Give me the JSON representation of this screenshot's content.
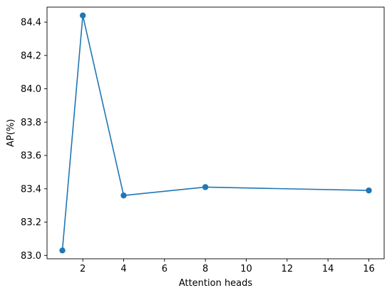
{
  "chart_data": {
    "type": "line",
    "title": "",
    "xlabel": "Attention heads",
    "ylabel": "AP(%)",
    "x": [
      1,
      2,
      4,
      8,
      16
    ],
    "series": [
      {
        "values": [
          83.03,
          84.44,
          83.36,
          83.41,
          83.39
        ],
        "color": "#1f77b4",
        "marker": "circle"
      }
    ],
    "xlim": [
      0.25,
      16.75
    ],
    "ylim": [
      82.98,
      84.49
    ],
    "xticks": [
      2,
      4,
      6,
      8,
      10,
      12,
      14,
      16
    ],
    "yticks": [
      83.0,
      83.2,
      83.4,
      83.6,
      83.8,
      84.0,
      84.2,
      84.4
    ],
    "xtick_labels": [
      "2",
      "4",
      "6",
      "8",
      "10",
      "12",
      "14",
      "16"
    ],
    "ytick_labels": [
      "83.0",
      "83.2",
      "83.4",
      "83.6",
      "83.8",
      "84.0",
      "84.2",
      "84.4"
    ],
    "grid": false,
    "legend": false
  }
}
